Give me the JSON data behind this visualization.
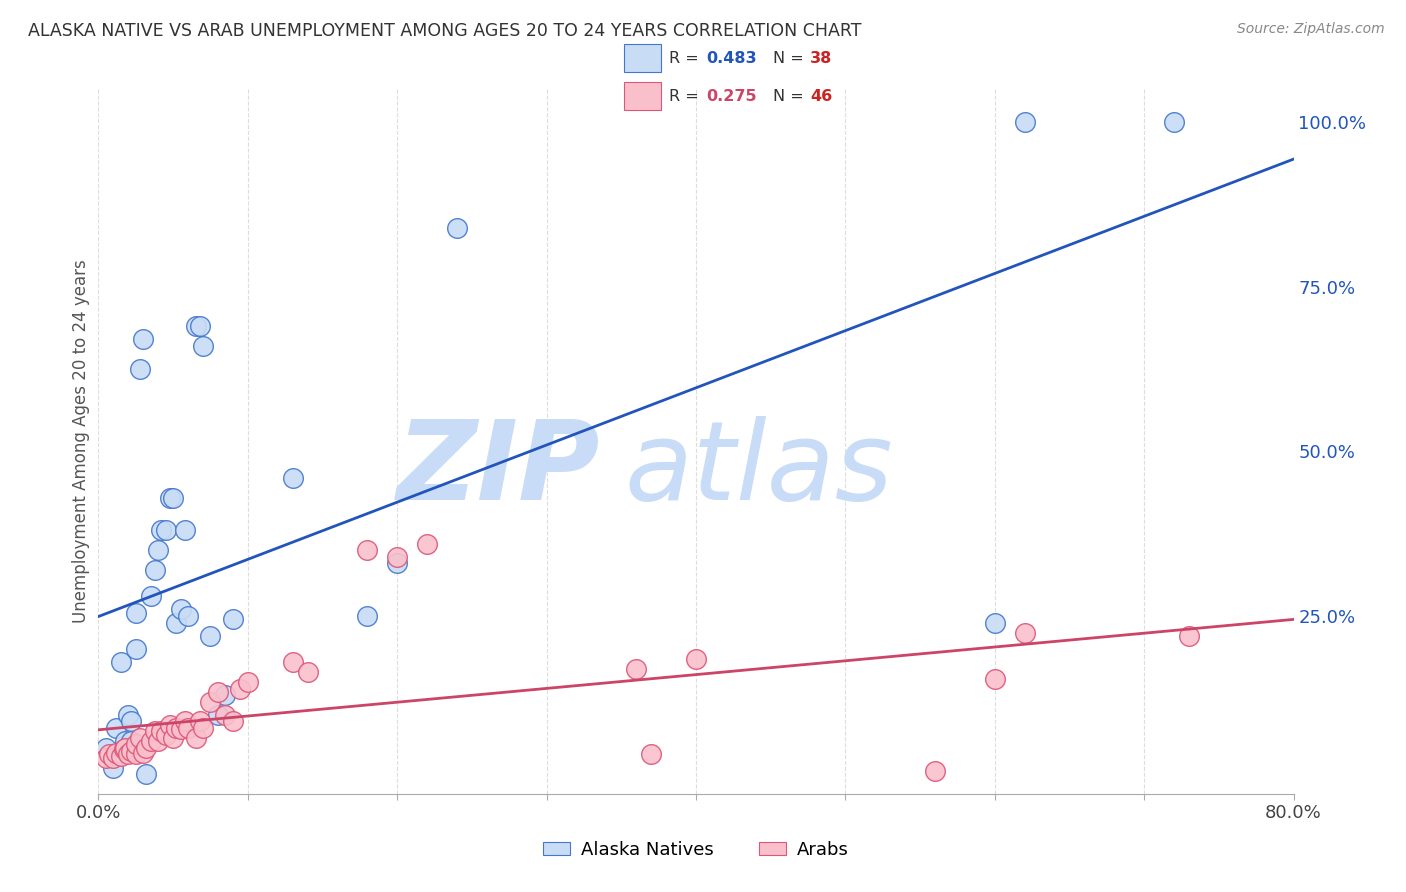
{
  "title": "ALASKA NATIVE VS ARAB UNEMPLOYMENT AMONG AGES 20 TO 24 YEARS CORRELATION CHART",
  "source": "Source: ZipAtlas.com",
  "ylabel": "Unemployment Among Ages 20 to 24 years",
  "xlim": [
    0.0,
    0.8
  ],
  "ylim": [
    -0.02,
    1.05
  ],
  "xticks": [
    0.0,
    0.1,
    0.2,
    0.3,
    0.4,
    0.5,
    0.6,
    0.7,
    0.8
  ],
  "xticklabels": [
    "0.0%",
    "",
    "",
    "",
    "",
    "",
    "",
    "",
    "80.0%"
  ],
  "yticks_right": [
    0.0,
    0.25,
    0.5,
    0.75,
    1.0
  ],
  "yticklabels_right": [
    "",
    "25.0%",
    "50.0%",
    "75.0%",
    "100.0%"
  ],
  "alaska_R": "0.483",
  "alaska_N": "38",
  "arab_R": "0.275",
  "arab_N": "46",
  "alaska_fill": "#c8dcf5",
  "arab_fill": "#f9c0cc",
  "alaska_edge": "#4477cc",
  "arab_edge": "#dd5577",
  "alaska_line": "#2255bb",
  "arab_line": "#cc4466",
  "alaska_label_color": "#2255bb",
  "arab_label_color": "#cc4466",
  "N_color": "#cc2222",
  "watermark_zip_color": "#c8dcf8",
  "watermark_atlas_color": "#c8dcf8",
  "grid_color": "#dddddd",
  "background": "#ffffff",
  "alaska_x": [
    0.005,
    0.01,
    0.012,
    0.015,
    0.018,
    0.02,
    0.022,
    0.022,
    0.025,
    0.025,
    0.028,
    0.03,
    0.032,
    0.035,
    0.038,
    0.04,
    0.042,
    0.045,
    0.048,
    0.05,
    0.052,
    0.055,
    0.058,
    0.06,
    0.065,
    0.068,
    0.07,
    0.075,
    0.08,
    0.085,
    0.09,
    0.13,
    0.18,
    0.2,
    0.24,
    0.6,
    0.62,
    0.72
  ],
  "alaska_y": [
    0.05,
    0.02,
    0.08,
    0.18,
    0.06,
    0.1,
    0.06,
    0.09,
    0.2,
    0.255,
    0.625,
    0.67,
    0.01,
    0.28,
    0.32,
    0.35,
    0.38,
    0.38,
    0.43,
    0.43,
    0.24,
    0.26,
    0.38,
    0.25,
    0.69,
    0.69,
    0.66,
    0.22,
    0.1,
    0.13,
    0.245,
    0.46,
    0.25,
    0.33,
    0.84,
    0.24,
    1.0,
    1.0
  ],
  "arab_x": [
    0.005,
    0.007,
    0.01,
    0.012,
    0.015,
    0.017,
    0.018,
    0.02,
    0.022,
    0.025,
    0.025,
    0.028,
    0.03,
    0.032,
    0.035,
    0.038,
    0.04,
    0.042,
    0.045,
    0.048,
    0.05,
    0.052,
    0.055,
    0.058,
    0.06,
    0.065,
    0.068,
    0.07,
    0.075,
    0.08,
    0.085,
    0.09,
    0.095,
    0.1,
    0.13,
    0.14,
    0.18,
    0.2,
    0.22,
    0.36,
    0.37,
    0.4,
    0.56,
    0.6,
    0.62,
    0.73
  ],
  "arab_y": [
    0.035,
    0.04,
    0.035,
    0.042,
    0.038,
    0.048,
    0.05,
    0.04,
    0.045,
    0.04,
    0.055,
    0.065,
    0.042,
    0.05,
    0.06,
    0.075,
    0.06,
    0.075,
    0.07,
    0.085,
    0.065,
    0.08,
    0.078,
    0.09,
    0.08,
    0.065,
    0.09,
    0.08,
    0.12,
    0.135,
    0.1,
    0.09,
    0.14,
    0.15,
    0.18,
    0.165,
    0.35,
    0.34,
    0.36,
    0.17,
    0.04,
    0.185,
    0.015,
    0.155,
    0.225,
    0.22
  ]
}
